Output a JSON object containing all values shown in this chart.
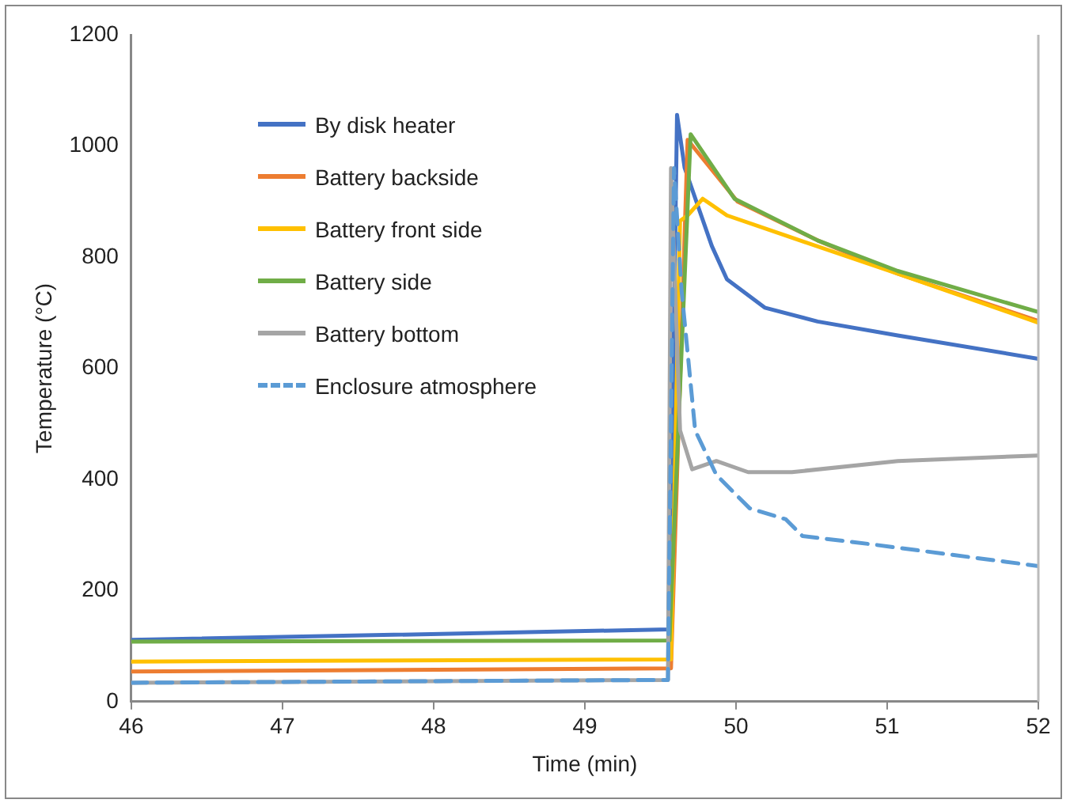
{
  "chart_data": {
    "type": "line",
    "xlabel": "Time (min)",
    "ylabel": "Temperature (°C)",
    "xlim": [
      46,
      52
    ],
    "xticks": [
      46,
      47,
      48,
      49,
      50,
      51,
      52
    ],
    "ylim": [
      0,
      1200
    ],
    "yticks": [
      0,
      200,
      400,
      600,
      800,
      1000,
      1200
    ],
    "grid": false,
    "legend": "top left",
    "marker": "none",
    "series": [
      {
        "name": "By disk heater",
        "color": "#4472c4",
        "line_style": "solid",
        "x": [
          46,
          49.56,
          49.61,
          49.66,
          49.84,
          49.94,
          50.19,
          50.54,
          51.07,
          52
        ],
        "values": [
          111,
          130,
          1056,
          961,
          820,
          760,
          709,
          684,
          659,
          617
        ]
      },
      {
        "name": "Battery backside",
        "color": "#ed7d31",
        "line_style": "solid",
        "x": [
          46,
          49.57,
          49.68,
          50.01,
          50.54,
          51.07,
          52
        ],
        "values": [
          54,
          60,
          1011,
          900,
          830,
          770,
          685
        ]
      },
      {
        "name": "Battery front side",
        "color": "#ffc000",
        "line_style": "solid",
        "x": [
          46,
          49.57,
          49.63,
          49.68,
          49.78,
          49.94,
          50.37,
          51.07,
          52
        ],
        "values": [
          72,
          76,
          865,
          875,
          905,
          875,
          835,
          770,
          682
        ]
      },
      {
        "name": "Battery side",
        "color": "#70ad47",
        "line_style": "solid",
        "x": [
          46,
          49.56,
          49.7,
          49.99,
          50.54,
          51.07,
          52
        ],
        "values": [
          108,
          110,
          1021,
          905,
          830,
          775,
          701
        ]
      },
      {
        "name": "Battery bottom",
        "color": "#a5a5a5",
        "line_style": "solid",
        "x": [
          46,
          49.55,
          49.57,
          49.63,
          49.71,
          49.87,
          50.08,
          50.37,
          51.07,
          52
        ],
        "values": [
          34,
          39,
          960,
          488,
          418,
          433,
          413,
          413,
          433,
          443
        ]
      },
      {
        "name": "Enclosure atmosphere",
        "color": "#5b9bd5",
        "line_style": "dashed",
        "x": [
          46,
          49.55,
          49.59,
          49.64,
          49.73,
          49.87,
          50.09,
          50.33,
          50.44,
          50.9,
          52
        ],
        "values": [
          34,
          39,
          960,
          740,
          488,
          408,
          348,
          328,
          298,
          283,
          244
        ]
      }
    ]
  }
}
